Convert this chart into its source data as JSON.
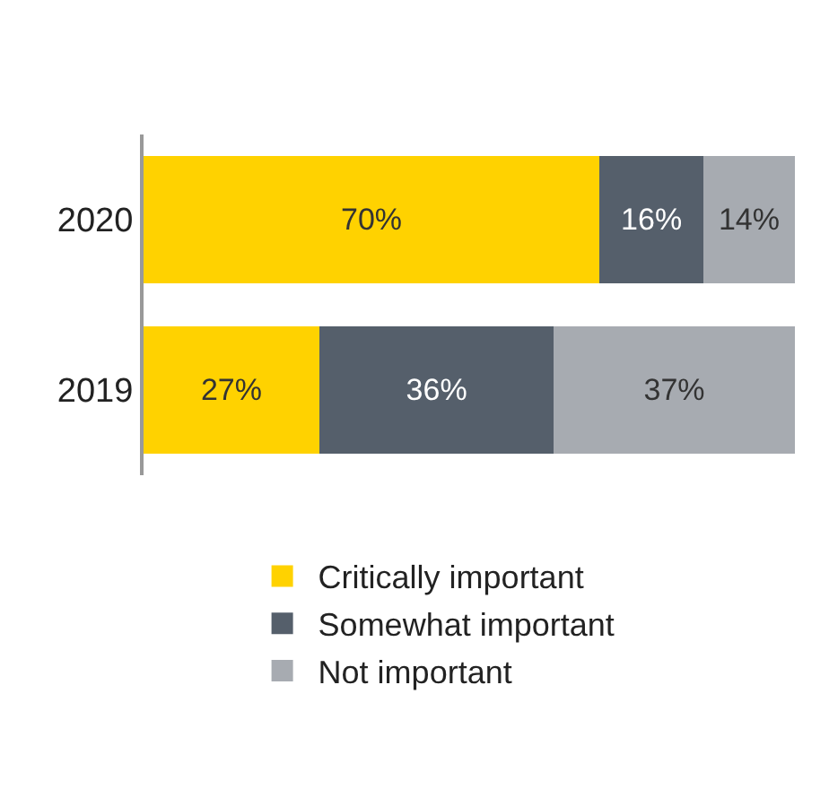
{
  "chart_data": {
    "type": "bar",
    "orientation": "horizontal",
    "stacked": true,
    "data_labels": true,
    "legend": "bottom",
    "tick_labels": "y",
    "categories": [
      "2020",
      "2019"
    ],
    "series": [
      {
        "name": "Critically important",
        "color": "#ffd200",
        "values": [
          70,
          27
        ],
        "value_labels": [
          "70%",
          "27%"
        ]
      },
      {
        "name": "Somewhat important",
        "color": "#555f6b",
        "values": [
          16,
          36
        ],
        "value_labels": [
          "16%",
          "36%"
        ]
      },
      {
        "name": "Not important",
        "color": "#a7abb1",
        "values": [
          14,
          37
        ],
        "value_labels": [
          "14%",
          "37%"
        ]
      }
    ]
  }
}
